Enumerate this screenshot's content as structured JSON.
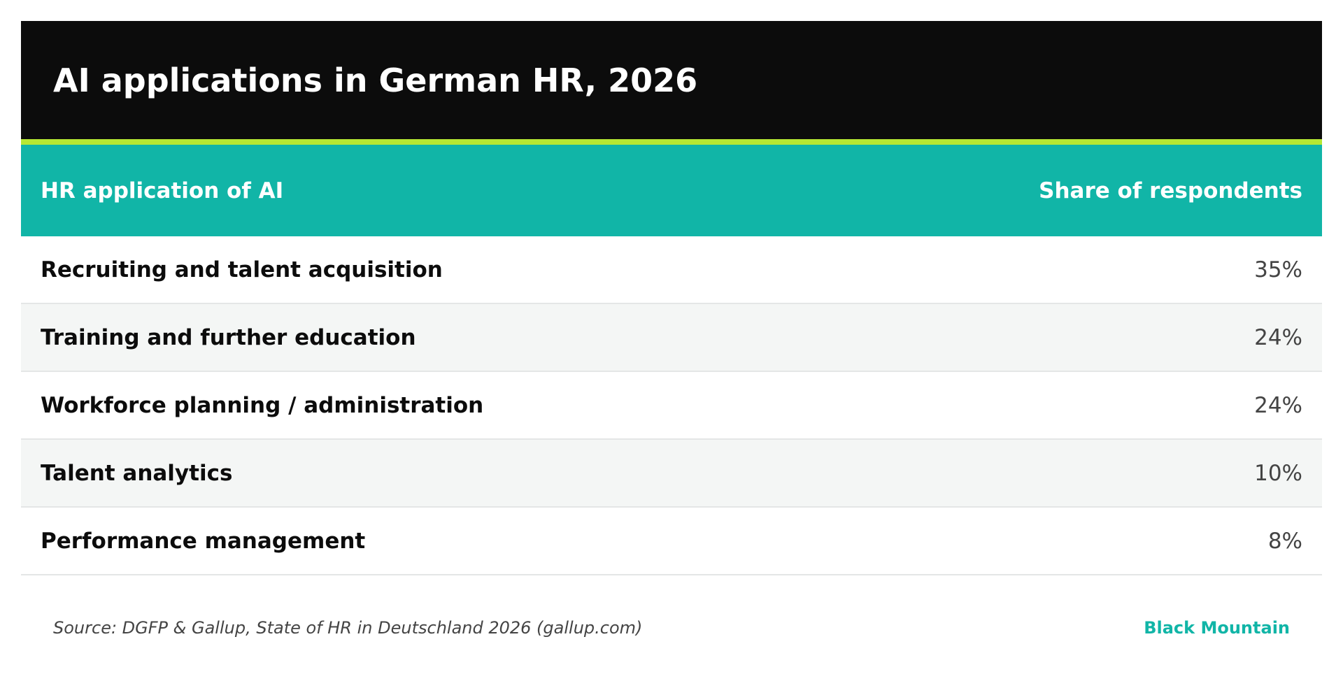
{
  "chart_data": {
    "type": "table",
    "title": "AI applications in German HR, 2026",
    "columns": [
      "HR application of AI",
      "Share of respondents"
    ],
    "rows": [
      {
        "label": "Recruiting and talent acquisition",
        "value": "35%"
      },
      {
        "label": "Training and further education",
        "value": "24%"
      },
      {
        "label": "Workforce planning / administration",
        "value": "24%"
      },
      {
        "label": "Talent analytics",
        "value": "10%"
      },
      {
        "label": "Performance management",
        "value": "8%"
      }
    ],
    "values": [
      35,
      24,
      24,
      10,
      8
    ]
  },
  "footer": {
    "source": "Source: DGFP & Gallup, State of HR in Deutschland 2026 (gallup.com)",
    "brand": "Black Mountain"
  },
  "colors": {
    "title_bg": "#0c0c0c",
    "accent": "#b5e833",
    "header_bg": "#11b5a7",
    "alt_row_bg": "#f4f6f5",
    "brand": "#11b5a7"
  }
}
